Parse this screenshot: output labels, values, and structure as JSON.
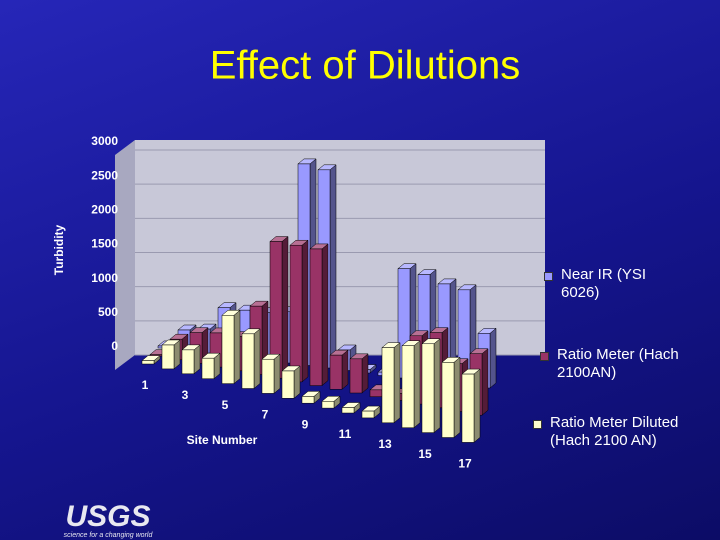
{
  "chart_data": {
    "type": "bar3d",
    "title": "Effect of Dilutions",
    "y_label": "Turbidity",
    "x_label": "Site Number",
    "categories": [
      "1",
      null,
      "3",
      null,
      "5",
      null,
      "7",
      null,
      "9",
      null,
      "11",
      null,
      "13",
      null,
      "15",
      null,
      "17"
    ],
    "series": [
      {
        "name": "Near IR (YSI 6026)",
        "color": "#9999ff",
        "values": [
          30,
          300,
          350,
          700,
          700,
          700,
          750,
          2950,
          2900,
          300,
          50,
          50,
          1600,
          1550,
          1450,
          1400,
          800
        ]
      },
      {
        "name": "Ratio Meter (Hach 2100AN)",
        "color": "#993366",
        "values": [
          20,
          300,
          450,
          500,
          500,
          1000,
          2000,
          2000,
          2000,
          500,
          500,
          100,
          100,
          1000,
          1100,
          700,
          900
        ]
      },
      {
        "name": "Ratio Meter Diluted (Hach 2100 AN)",
        "color": "#ffffcc",
        "values": [
          50,
          350,
          350,
          300,
          1000,
          800,
          500,
          400,
          100,
          100,
          80,
          100,
          1100,
          1200,
          1300,
          1100,
          1000
        ]
      }
    ],
    "ylim": [
      0,
      3000
    ],
    "yticks": [
      0,
      500,
      1000,
      1500,
      2000,
      2500,
      3000
    ],
    "grid": true
  },
  "logo": {
    "text": "USGS",
    "tagline": "science for a changing world"
  }
}
